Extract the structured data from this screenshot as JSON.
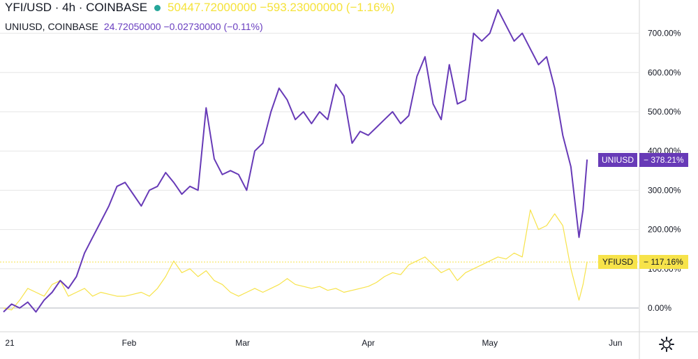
{
  "legend": {
    "yfi": {
      "symbol": "YFI/USD · 4h · COINBASE",
      "values": "50447.72000000  −593.23000000 (−1.16%)"
    },
    "uni": {
      "symbol": "UNIUSD, COINBASE",
      "values": "24.72050000  −0.02730000 (−0.11%)"
    }
  },
  "toolbar": {
    "settings_icon": "gear-icon"
  },
  "colors": {
    "uni": "#673ab7",
    "yfi": "#f7e34a",
    "grid": "#e6e6e6",
    "zero_line": "#b2b5be"
  },
  "chart_data": {
    "type": "line",
    "title": "",
    "xlabel": "",
    "ylabel": "",
    "x_ticks": [
      "21",
      "Feb",
      "Mar",
      "Apr",
      "May",
      "Jun"
    ],
    "y_ticks": [
      "0.00%",
      "100.00%",
      "200.00%",
      "300.00%",
      "400.00%",
      "500.00%",
      "600.00%",
      "700.00%"
    ],
    "ylim": [
      -60,
      770
    ],
    "xlim": [
      "2021-01-01",
      "2021-06-05"
    ],
    "axis_position": "right",
    "grid": true,
    "series": [
      {
        "name": "UNIUSD",
        "last_label": "378.21%",
        "color": "#673ab7",
        "points": [
          [
            "2021-01-01",
            -10
          ],
          [
            "2021-01-03",
            10
          ],
          [
            "2021-01-05",
            0
          ],
          [
            "2021-01-07",
            15
          ],
          [
            "2021-01-09",
            -10
          ],
          [
            "2021-01-11",
            20
          ],
          [
            "2021-01-13",
            40
          ],
          [
            "2021-01-15",
            70
          ],
          [
            "2021-01-17",
            50
          ],
          [
            "2021-01-19",
            80
          ],
          [
            "2021-01-21",
            140
          ],
          [
            "2021-01-23",
            180
          ],
          [
            "2021-01-25",
            220
          ],
          [
            "2021-01-27",
            260
          ],
          [
            "2021-01-29",
            310
          ],
          [
            "2021-01-31",
            320
          ],
          [
            "2021-02-02",
            290
          ],
          [
            "2021-02-04",
            260
          ],
          [
            "2021-02-06",
            300
          ],
          [
            "2021-02-08",
            310
          ],
          [
            "2021-02-10",
            345
          ],
          [
            "2021-02-12",
            320
          ],
          [
            "2021-02-14",
            290
          ],
          [
            "2021-02-16",
            310
          ],
          [
            "2021-02-18",
            300
          ],
          [
            "2021-02-20",
            510
          ],
          [
            "2021-02-22",
            380
          ],
          [
            "2021-02-24",
            340
          ],
          [
            "2021-02-26",
            350
          ],
          [
            "2021-02-28",
            340
          ],
          [
            "2021-03-02",
            300
          ],
          [
            "2021-03-04",
            400
          ],
          [
            "2021-03-06",
            420
          ],
          [
            "2021-03-08",
            500
          ],
          [
            "2021-03-10",
            560
          ],
          [
            "2021-03-12",
            530
          ],
          [
            "2021-03-14",
            480
          ],
          [
            "2021-03-16",
            500
          ],
          [
            "2021-03-18",
            470
          ],
          [
            "2021-03-20",
            500
          ],
          [
            "2021-03-22",
            480
          ],
          [
            "2021-03-24",
            570
          ],
          [
            "2021-03-26",
            540
          ],
          [
            "2021-03-28",
            420
          ],
          [
            "2021-03-30",
            450
          ],
          [
            "2021-04-01",
            440
          ],
          [
            "2021-04-03",
            460
          ],
          [
            "2021-04-05",
            480
          ],
          [
            "2021-04-07",
            500
          ],
          [
            "2021-04-09",
            470
          ],
          [
            "2021-04-11",
            490
          ],
          [
            "2021-04-13",
            590
          ],
          [
            "2021-04-15",
            640
          ],
          [
            "2021-04-17",
            520
          ],
          [
            "2021-04-19",
            480
          ],
          [
            "2021-04-21",
            620
          ],
          [
            "2021-04-23",
            520
          ],
          [
            "2021-04-25",
            530
          ],
          [
            "2021-04-27",
            700
          ],
          [
            "2021-04-29",
            680
          ],
          [
            "2021-05-01",
            700
          ],
          [
            "2021-05-03",
            760
          ],
          [
            "2021-05-05",
            720
          ],
          [
            "2021-05-07",
            680
          ],
          [
            "2021-05-09",
            700
          ],
          [
            "2021-05-11",
            660
          ],
          [
            "2021-05-13",
            620
          ],
          [
            "2021-05-15",
            640
          ],
          [
            "2021-05-17",
            560
          ],
          [
            "2021-05-19",
            440
          ],
          [
            "2021-05-21",
            360
          ],
          [
            "2021-05-23",
            180
          ],
          [
            "2021-05-24",
            250
          ],
          [
            "2021-05-25",
            378.21
          ]
        ]
      },
      {
        "name": "YFIUSD",
        "last_label": "117.16%",
        "color": "#f7e34a",
        "points": [
          [
            "2021-01-01",
            0
          ],
          [
            "2021-01-03",
            -5
          ],
          [
            "2021-01-05",
            20
          ],
          [
            "2021-01-07",
            50
          ],
          [
            "2021-01-09",
            40
          ],
          [
            "2021-01-11",
            30
          ],
          [
            "2021-01-13",
            60
          ],
          [
            "2021-01-15",
            70
          ],
          [
            "2021-01-17",
            30
          ],
          [
            "2021-01-19",
            40
          ],
          [
            "2021-01-21",
            50
          ],
          [
            "2021-01-23",
            30
          ],
          [
            "2021-01-25",
            40
          ],
          [
            "2021-01-27",
            35
          ],
          [
            "2021-01-29",
            30
          ],
          [
            "2021-01-31",
            30
          ],
          [
            "2021-02-02",
            35
          ],
          [
            "2021-02-04",
            40
          ],
          [
            "2021-02-06",
            30
          ],
          [
            "2021-02-08",
            50
          ],
          [
            "2021-02-10",
            80
          ],
          [
            "2021-02-12",
            120
          ],
          [
            "2021-02-14",
            90
          ],
          [
            "2021-02-16",
            100
          ],
          [
            "2021-02-18",
            80
          ],
          [
            "2021-02-20",
            95
          ],
          [
            "2021-02-22",
            70
          ],
          [
            "2021-02-24",
            60
          ],
          [
            "2021-02-26",
            40
          ],
          [
            "2021-02-28",
            30
          ],
          [
            "2021-03-02",
            40
          ],
          [
            "2021-03-04",
            50
          ],
          [
            "2021-03-06",
            40
          ],
          [
            "2021-03-08",
            50
          ],
          [
            "2021-03-10",
            60
          ],
          [
            "2021-03-12",
            75
          ],
          [
            "2021-03-14",
            60
          ],
          [
            "2021-03-16",
            55
          ],
          [
            "2021-03-18",
            50
          ],
          [
            "2021-03-20",
            55
          ],
          [
            "2021-03-22",
            45
          ],
          [
            "2021-03-24",
            50
          ],
          [
            "2021-03-26",
            40
          ],
          [
            "2021-03-28",
            45
          ],
          [
            "2021-03-30",
            50
          ],
          [
            "2021-04-01",
            55
          ],
          [
            "2021-04-03",
            65
          ],
          [
            "2021-04-05",
            80
          ],
          [
            "2021-04-07",
            90
          ],
          [
            "2021-04-09",
            85
          ],
          [
            "2021-04-11",
            110
          ],
          [
            "2021-04-13",
            120
          ],
          [
            "2021-04-15",
            130
          ],
          [
            "2021-04-17",
            110
          ],
          [
            "2021-04-19",
            90
          ],
          [
            "2021-04-21",
            100
          ],
          [
            "2021-04-23",
            70
          ],
          [
            "2021-04-25",
            90
          ],
          [
            "2021-04-27",
            100
          ],
          [
            "2021-04-29",
            110
          ],
          [
            "2021-05-01",
            120
          ],
          [
            "2021-05-03",
            130
          ],
          [
            "2021-05-05",
            125
          ],
          [
            "2021-05-07",
            140
          ],
          [
            "2021-05-09",
            130
          ],
          [
            "2021-05-11",
            250
          ],
          [
            "2021-05-13",
            200
          ],
          [
            "2021-05-15",
            210
          ],
          [
            "2021-05-17",
            240
          ],
          [
            "2021-05-19",
            210
          ],
          [
            "2021-05-21",
            100
          ],
          [
            "2021-05-23",
            20
          ],
          [
            "2021-05-24",
            60
          ],
          [
            "2021-05-25",
            117.16
          ]
        ]
      }
    ]
  }
}
